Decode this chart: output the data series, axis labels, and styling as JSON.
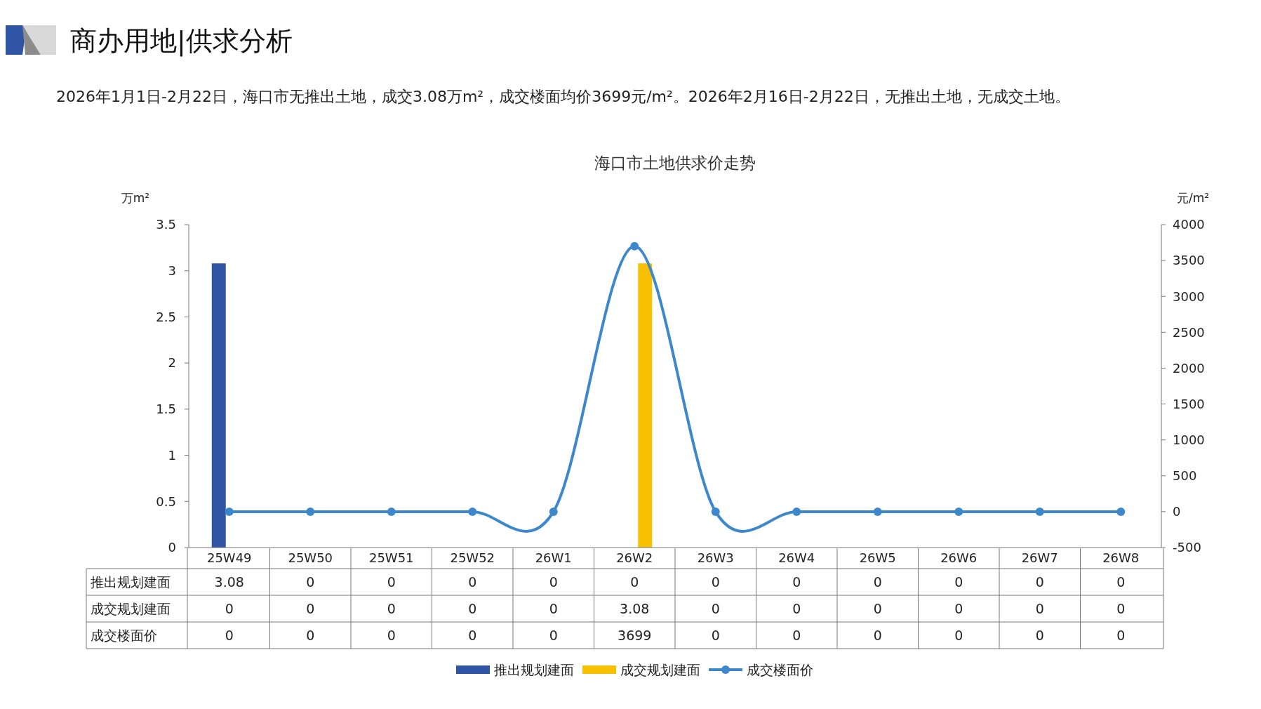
{
  "chart_data": {
    "type": "bar",
    "title": "海口市土地供求价走势",
    "subtitle": "2026年1月1日-2月22日，海口市无推出土地，成交3.08万m²，成交楼面均价3699元/m²。2026年2月16日-2月22日，无推出土地，无成交土地。",
    "annotations": [
      "商办用地|供求分析"
    ],
    "ylabel": "万m²",
    "y2label": "元/m²",
    "categories": [
      "25W49",
      "25W50",
      "25W51",
      "25W52",
      "26W1",
      "26W2",
      "26W3",
      "26W4",
      "26W5",
      "26W6",
      "26W7",
      "26W8"
    ],
    "series": [
      {
        "name": "推出规划建面",
        "color": "#2f55a4",
        "values": [
          3.08,
          0,
          0,
          0,
          0,
          0,
          0,
          0,
          0,
          0,
          0,
          0
        ]
      },
      {
        "name": "成交规划建面",
        "color": "#f7c000",
        "values": [
          0,
          0,
          0,
          0,
          0,
          3.08,
          0,
          0,
          0,
          0,
          0,
          0
        ]
      },
      {
        "name": "成交楼面价",
        "type": "line",
        "axis": "y2",
        "color": "#3d88cc",
        "values": [
          0,
          0,
          0,
          0,
          0,
          3699,
          0,
          0,
          0,
          0,
          0,
          0
        ]
      }
    ],
    "ylim": [
      0,
      3.5
    ],
    "yticks": [
      0,
      0.5,
      1,
      1.5,
      2,
      2.5,
      3,
      3.5
    ],
    "y2lim": [
      -500,
      4000
    ],
    "y2ticks": [
      -500,
      0,
      500,
      1000,
      1500,
      2000,
      2500,
      3000,
      3500,
      4000
    ],
    "legend": "bottom",
    "marker": "circle",
    "data_labels": true
  }
}
